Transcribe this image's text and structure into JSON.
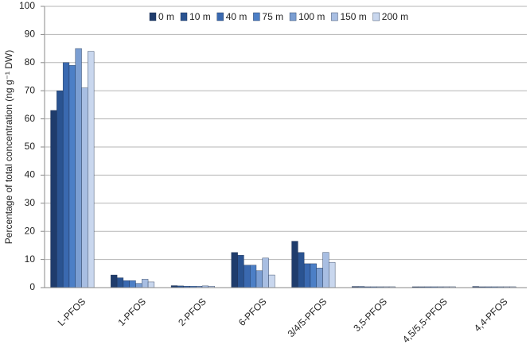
{
  "chart_data": {
    "type": "bar",
    "y_label": "Percentage of total concentration (ng g⁻¹ DW)",
    "categories": [
      "L-PFOS",
      "1-PFOS",
      "2-PFOS",
      "6-PFOS",
      "3/4/5-PFOS",
      "3,5-PFOS",
      "4,5/5,5-PFOS",
      "4,4-PFOS"
    ],
    "series": [
      {
        "name": "0 m",
        "color": "#1f3c6c",
        "values": [
          63,
          4.5,
          0.7,
          12.5,
          16.5,
          0.4,
          0.3,
          0.4
        ]
      },
      {
        "name": "10 m",
        "color": "#2a5391",
        "values": [
          70,
          3.5,
          0.6,
          11.5,
          12.5,
          0.4,
          0.3,
          0.3
        ]
      },
      {
        "name": "40 m",
        "color": "#3a69b0",
        "values": [
          80,
          2.5,
          0.5,
          8,
          8.5,
          0.3,
          0.3,
          0.3
        ]
      },
      {
        "name": "75 m",
        "color": "#4c7fc6",
        "values": [
          79,
          2.5,
          0.5,
          8,
          8.5,
          0.3,
          0.3,
          0.3
        ]
      },
      {
        "name": "100 m",
        "color": "#7b9ed2",
        "values": [
          85,
          1.5,
          0.5,
          6,
          7,
          0.3,
          0.3,
          0.3
        ]
      },
      {
        "name": "150 m",
        "color": "#a8bee2",
        "values": [
          71,
          3,
          0.6,
          10.5,
          12.5,
          0.3,
          0.3,
          0.3
        ]
      },
      {
        "name": "200 m",
        "color": "#c9d7ee",
        "values": [
          84,
          2,
          0.5,
          4.5,
          9,
          0.3,
          0.3,
          0.3
        ]
      }
    ],
    "ylim": [
      0,
      100
    ],
    "yticks": [
      0,
      10,
      20,
      30,
      40,
      50,
      60,
      70,
      80,
      90,
      100
    ],
    "grid": true
  }
}
